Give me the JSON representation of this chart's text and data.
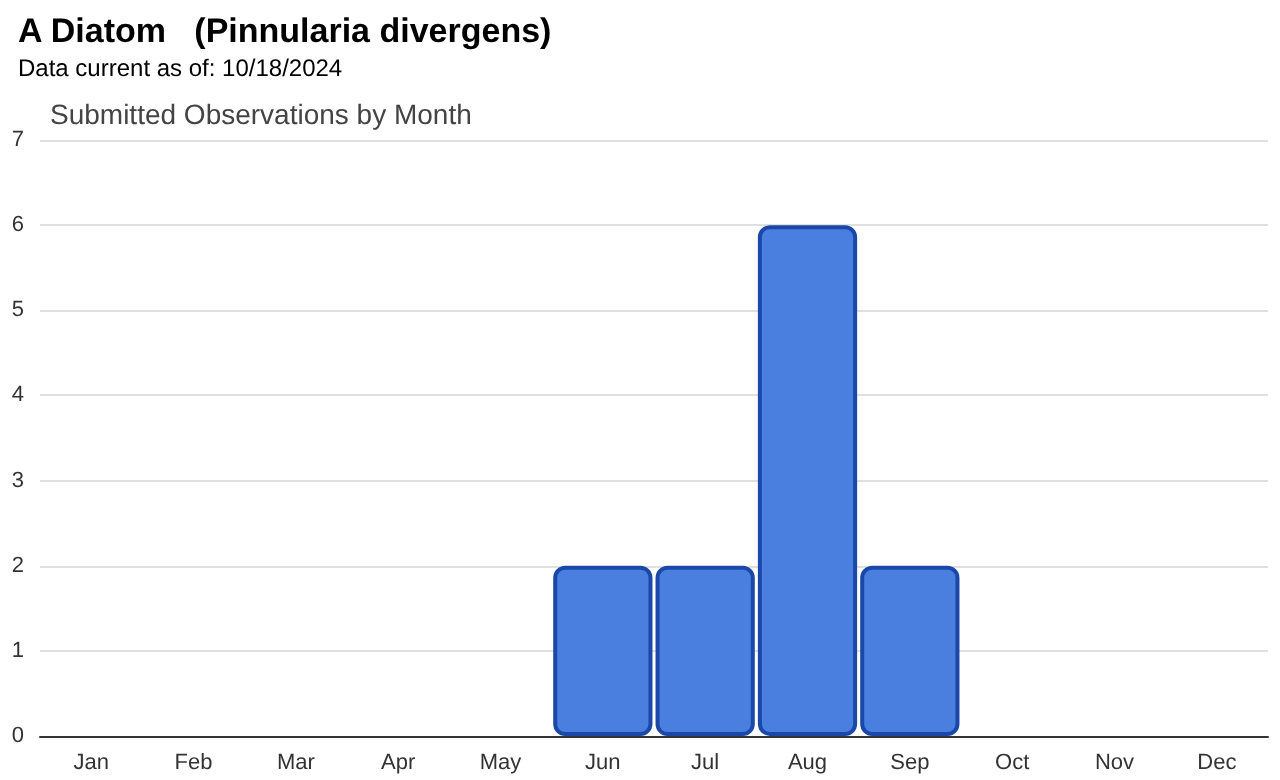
{
  "chart_data": {
    "type": "bar",
    "title": "A Diatom   (Pinnularia divergens)",
    "subtitle": "Data current as of: 10/18/2024",
    "annotations": [
      "Submitted Observations by Month"
    ],
    "categories": [
      "Jan",
      "Feb",
      "Mar",
      "Apr",
      "May",
      "Jun",
      "Jul",
      "Aug",
      "Sep",
      "Oct",
      "Nov",
      "Dec"
    ],
    "values": [
      0,
      0,
      0,
      0,
      0,
      2,
      2,
      6,
      2,
      0,
      0,
      0
    ],
    "color": "#4a7fe0",
    "ylim": [
      0,
      7
    ],
    "yticks": [
      0,
      1,
      2,
      3,
      4,
      5,
      6,
      7
    ],
    "grid": "y"
  }
}
